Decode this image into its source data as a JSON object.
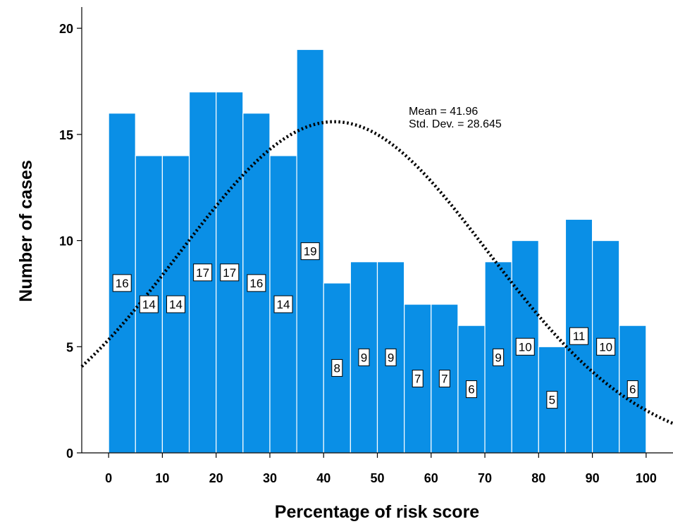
{
  "chart_data": {
    "type": "bar",
    "subtype": "histogram",
    "xlabel": "Percentage of risk score",
    "ylabel": "Number of cases",
    "xlim": [
      -5,
      105
    ],
    "ylim": [
      0,
      21
    ],
    "x_ticks": [
      0,
      10,
      20,
      30,
      40,
      50,
      60,
      70,
      80,
      90,
      100
    ],
    "y_ticks": [
      0,
      5,
      10,
      15,
      20
    ],
    "bin_width": 5,
    "bin_starts": [
      0,
      5,
      10,
      15,
      20,
      25,
      30,
      35,
      40,
      45,
      50,
      55,
      60,
      65,
      70,
      75,
      80,
      85,
      90,
      95
    ],
    "values": [
      16,
      14,
      14,
      17,
      17,
      16,
      14,
      19,
      8,
      9,
      9,
      7,
      7,
      6,
      9,
      10,
      5,
      11,
      10,
      6
    ],
    "bar_color": "#0a8fe6",
    "bar_edge_color": "#ffffff",
    "normal_curve": {
      "mean": 41.96,
      "std_dev": 28.645,
      "style": "dotted",
      "color": "#000000"
    },
    "stats_text": [
      "Mean = 41.96",
      "Std. Dev. = 28.645"
    ],
    "grid": false,
    "legend": "none"
  }
}
